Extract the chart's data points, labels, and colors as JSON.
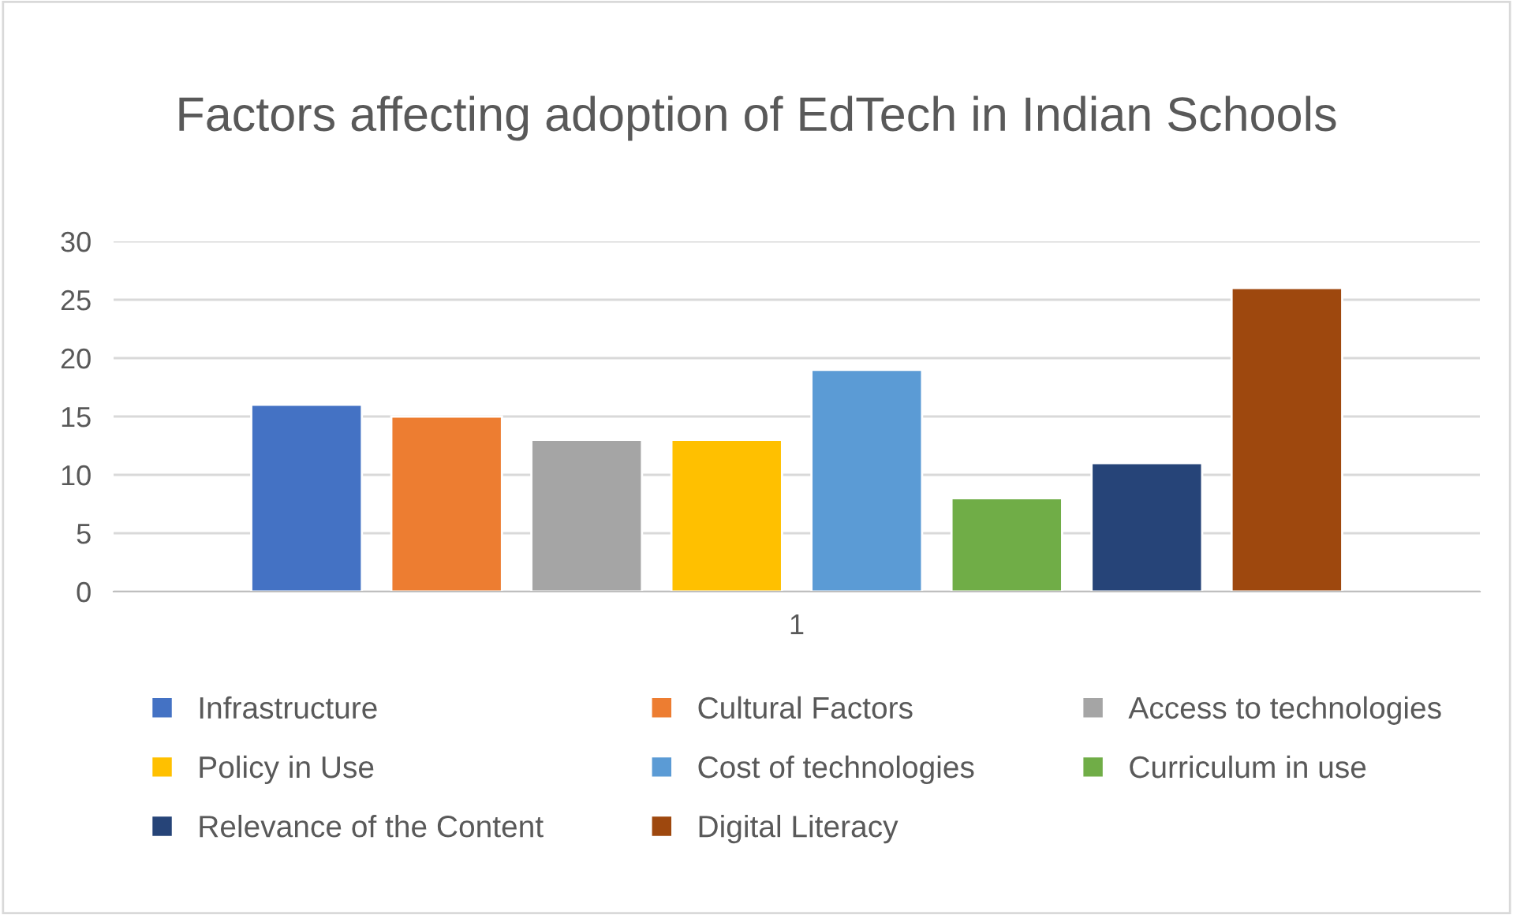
{
  "chart_data": {
    "type": "bar",
    "title": "Factors affecting adoption of EdTech in Indian Schools",
    "categories": [
      "1"
    ],
    "series": [
      {
        "name": "Infrastructure",
        "color": "#4472c4",
        "values": [
          16
        ]
      },
      {
        "name": "Cultural Factors",
        "color": "#ed7d31",
        "values": [
          15
        ]
      },
      {
        "name": "Access to technologies",
        "color": "#a5a5a5",
        "values": [
          13
        ]
      },
      {
        "name": "Policy in Use",
        "color": "#ffc000",
        "values": [
          13
        ]
      },
      {
        "name": "Cost of technologies",
        "color": "#5b9bd5",
        "values": [
          19
        ]
      },
      {
        "name": "Curriculum in use",
        "color": "#70ad47",
        "values": [
          8
        ]
      },
      {
        "name": "Relevance of the Content",
        "color": "#264478",
        "values": [
          11
        ]
      },
      {
        "name": "Digital Literacy",
        "color": "#9e480e",
        "values": [
          26
        ]
      }
    ],
    "ylim": [
      0,
      30
    ],
    "yticks": [
      0,
      5,
      10,
      15,
      20,
      25,
      30
    ],
    "grid": "y",
    "legend": "bottom"
  }
}
